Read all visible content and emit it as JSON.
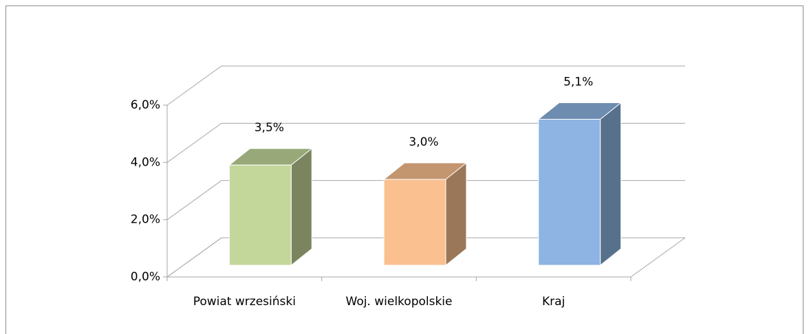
{
  "chart_data": {
    "type": "bar3d",
    "categories": [
      "Powiat wrzesiński",
      "Woj. wielkopolskie",
      "Kraj"
    ],
    "values": [
      3.5,
      3.0,
      5.1
    ],
    "value_labels": [
      "3,5%",
      "3,0%",
      "5,1%"
    ],
    "colors": [
      "#c4d79b",
      "#fac090",
      "#8db4e2"
    ],
    "ylim": [
      0,
      6
    ],
    "yticks": [
      {
        "value": 0,
        "label": "0,0%"
      },
      {
        "value": 2,
        "label": "2,0%"
      },
      {
        "value": 4,
        "label": "4,0%"
      },
      {
        "value": 6,
        "label": "6,0%"
      }
    ],
    "grid": true
  }
}
